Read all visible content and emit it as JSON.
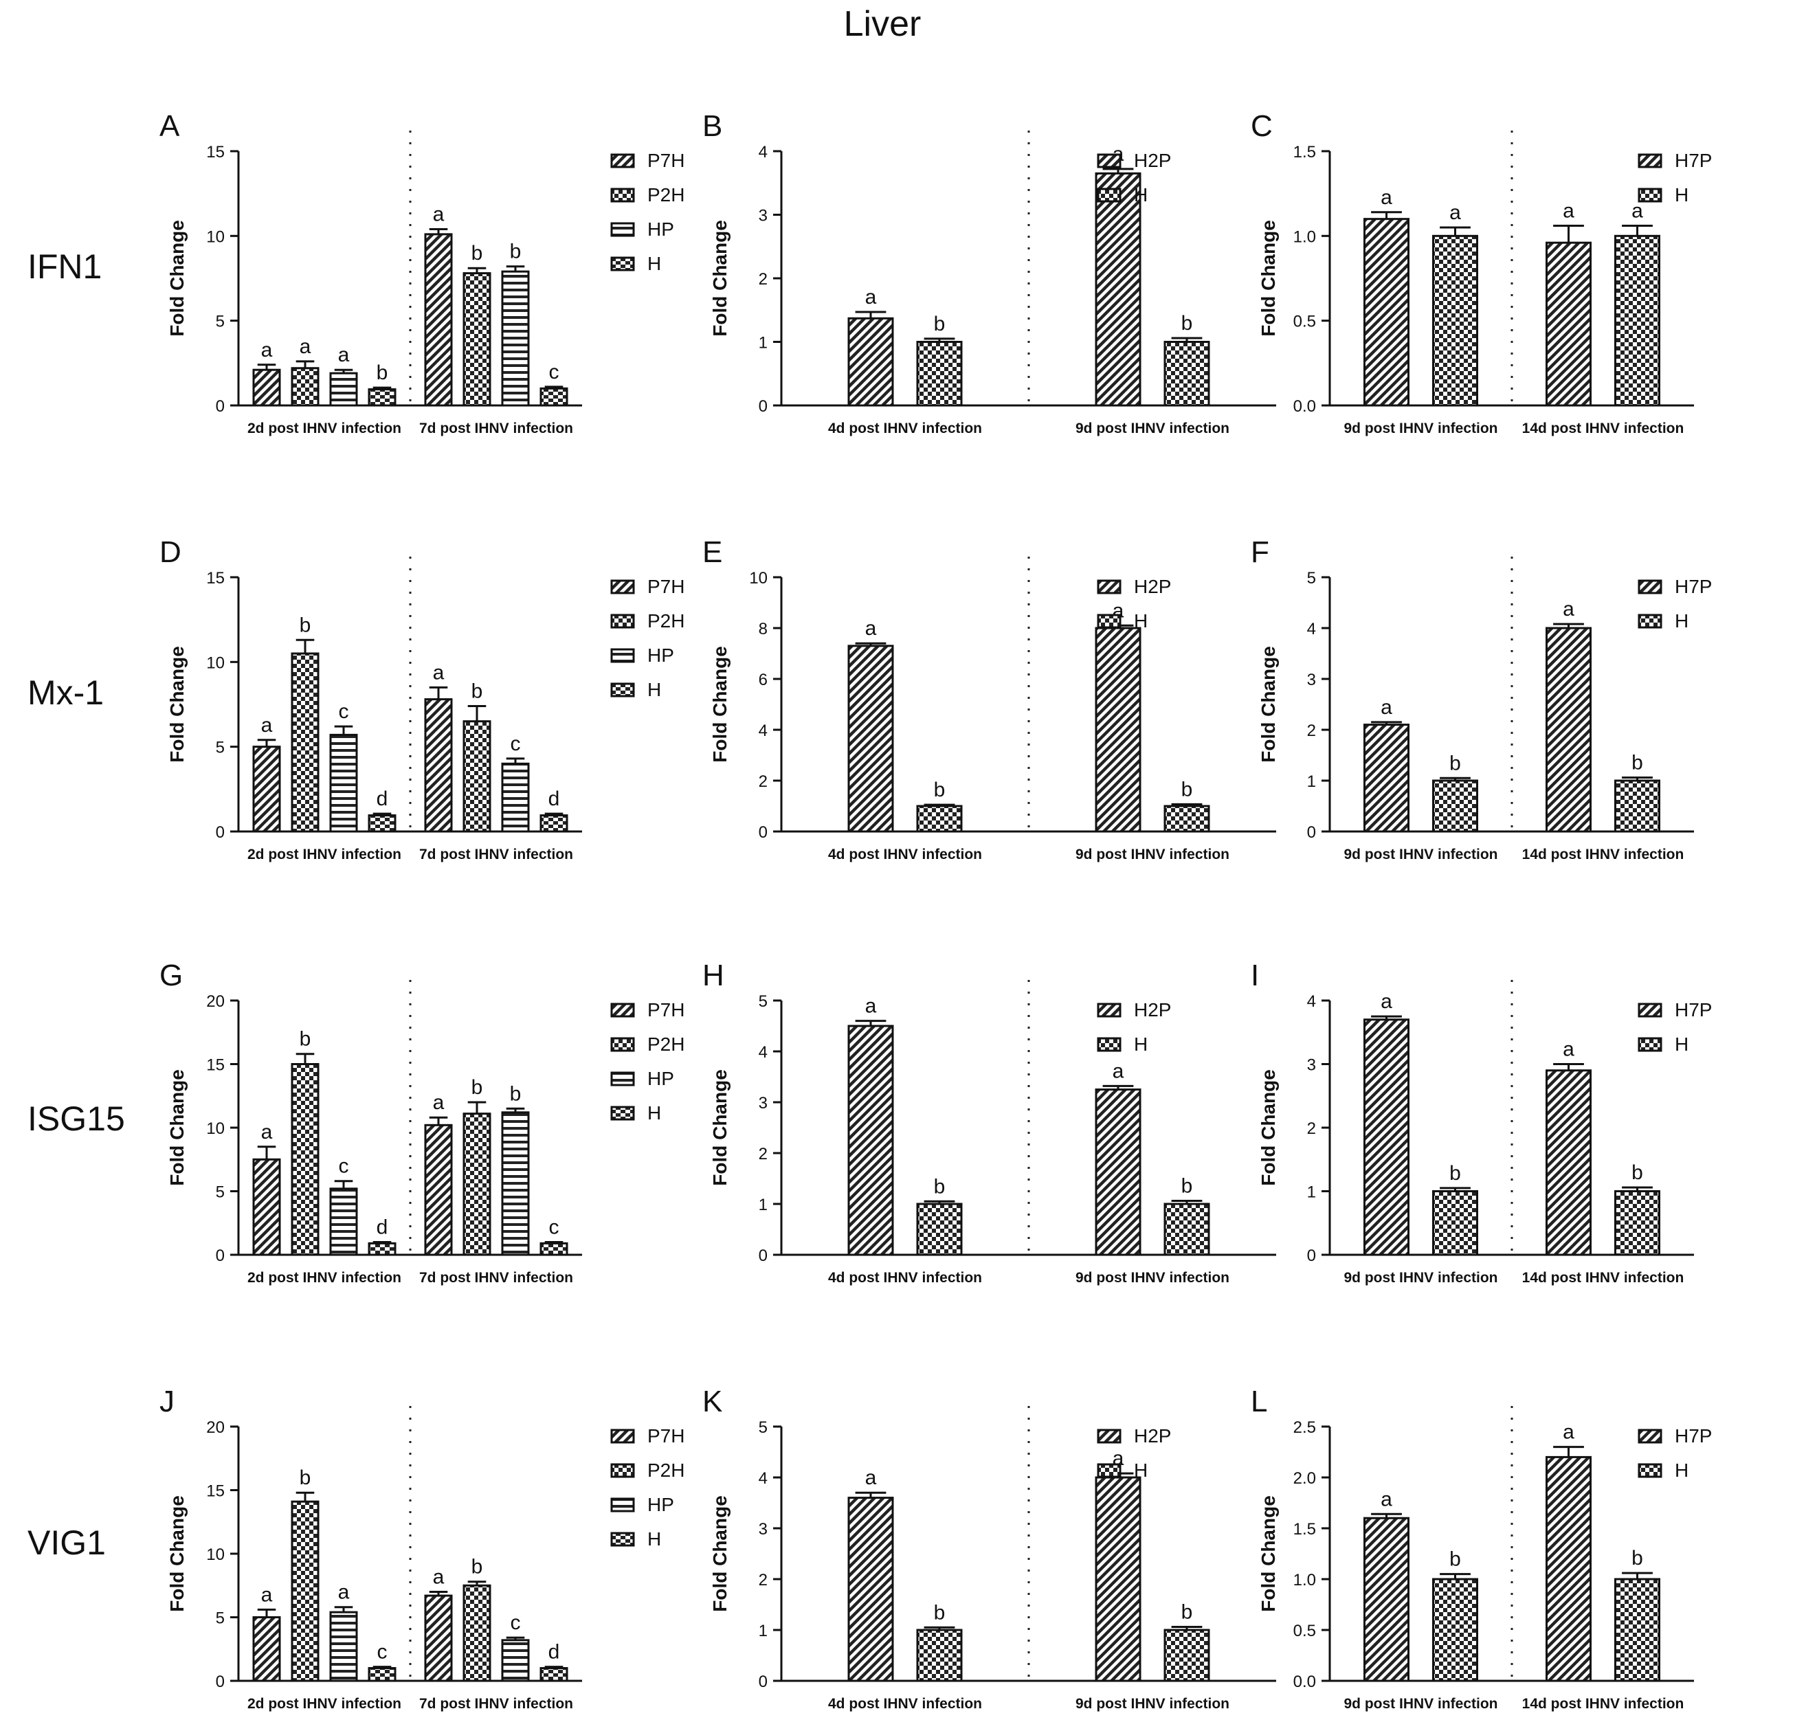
{
  "title": "Liver",
  "genes": [
    "IFN1",
    "Mx-1",
    "ISG15",
    "VIG1"
  ],
  "colors": {
    "ink": "#111111",
    "background": "#ffffff"
  },
  "chart_data": [
    {
      "id": "A",
      "panel_label": "A",
      "gene": "IFN1",
      "type": "bar",
      "ylabel": "Fold Change",
      "ylim": [
        0,
        15
      ],
      "yticks": [
        "0",
        "5",
        "10",
        "15"
      ],
      "legend": [
        "P7H",
        "P2H",
        "HP",
        "H"
      ],
      "patterns": [
        "diag",
        "check",
        "hstripe",
        "checkwide"
      ],
      "groups": [
        {
          "label": "2d post IHNV infection",
          "values": [
            2.1,
            2.2,
            1.9,
            0.95
          ],
          "errors": [
            0.3,
            0.4,
            0.2,
            0.1
          ],
          "letters": [
            "a",
            "a",
            "a",
            "b"
          ]
        },
        {
          "label": "7d post IHNV infection",
          "values": [
            10.1,
            7.8,
            7.9,
            1.0
          ],
          "errors": [
            0.3,
            0.3,
            0.3,
            0.1
          ],
          "letters": [
            "a",
            "b",
            "b",
            "c"
          ]
        }
      ]
    },
    {
      "id": "B",
      "panel_label": "B",
      "gene": "IFN1",
      "type": "bar",
      "ylabel": "Fold Change",
      "ylim": [
        0,
        4
      ],
      "yticks": [
        "0",
        "1",
        "2",
        "3",
        "4"
      ],
      "legend": [
        "H2P",
        "H"
      ],
      "patterns": [
        "diag",
        "check"
      ],
      "groups": [
        {
          "label": "4d post IHNV infection",
          "values": [
            1.37,
            1.0
          ],
          "errors": [
            0.1,
            0.05
          ],
          "letters": [
            "a",
            "b"
          ]
        },
        {
          "label": "9d post IHNV infection",
          "values": [
            3.65,
            1.0
          ],
          "errors": [
            0.07,
            0.06
          ],
          "letters": [
            "a",
            "b"
          ]
        }
      ]
    },
    {
      "id": "C",
      "panel_label": "C",
      "gene": "IFN1",
      "type": "bar",
      "ylabel": "Fold Change",
      "ylim": [
        0,
        1.5
      ],
      "yticks": [
        "0.0",
        "0.5",
        "1.0",
        "1.5"
      ],
      "legend": [
        "H7P",
        "H"
      ],
      "patterns": [
        "diag",
        "check"
      ],
      "groups": [
        {
          "label": "9d post IHNV infection",
          "values": [
            1.1,
            1.0
          ],
          "errors": [
            0.04,
            0.05
          ],
          "letters": [
            "a",
            "a"
          ]
        },
        {
          "label": "14d post IHNV infection",
          "values": [
            0.96,
            1.0
          ],
          "errors": [
            0.1,
            0.06
          ],
          "letters": [
            "a",
            "a"
          ]
        }
      ]
    },
    {
      "id": "D",
      "panel_label": "D",
      "gene": "Mx-1",
      "type": "bar",
      "ylabel": "Fold Change",
      "ylim": [
        0,
        15
      ],
      "yticks": [
        "0",
        "5",
        "10",
        "15"
      ],
      "legend": [
        "P7H",
        "P2H",
        "HP",
        "H"
      ],
      "patterns": [
        "diag",
        "check",
        "hstripe",
        "checkwide"
      ],
      "groups": [
        {
          "label": "2d post IHNV infection",
          "values": [
            5.0,
            10.5,
            5.7,
            0.95
          ],
          "errors": [
            0.4,
            0.8,
            0.5,
            0.1
          ],
          "letters": [
            "a",
            "b",
            "c",
            "d"
          ]
        },
        {
          "label": "7d post IHNV infection",
          "values": [
            7.8,
            6.5,
            4.0,
            0.95
          ],
          "errors": [
            0.7,
            0.9,
            0.3,
            0.1
          ],
          "letters": [
            "a",
            "b",
            "c",
            "d"
          ]
        }
      ]
    },
    {
      "id": "E",
      "panel_label": "E",
      "gene": "Mx-1",
      "type": "bar",
      "ylabel": "Fold Change",
      "ylim": [
        0,
        10
      ],
      "yticks": [
        "0",
        "2",
        "4",
        "6",
        "8",
        "10"
      ],
      "legend": [
        "H2P",
        "H"
      ],
      "patterns": [
        "diag",
        "check"
      ],
      "groups": [
        {
          "label": "4d post IHNV infection",
          "values": [
            7.3,
            1.0
          ],
          "errors": [
            0.1,
            0.05
          ],
          "letters": [
            "a",
            "b"
          ]
        },
        {
          "label": "9d post IHNV infection",
          "values": [
            8.0,
            1.0
          ],
          "errors": [
            0.1,
            0.07
          ],
          "letters": [
            "a",
            "b"
          ]
        }
      ]
    },
    {
      "id": "F",
      "panel_label": "F",
      "gene": "Mx-1",
      "type": "bar",
      "ylabel": "Fold Change",
      "ylim": [
        0,
        5
      ],
      "yticks": [
        "0",
        "1",
        "2",
        "3",
        "4",
        "5"
      ],
      "legend": [
        "H7P",
        "H"
      ],
      "patterns": [
        "diag",
        "check"
      ],
      "groups": [
        {
          "label": "9d post IHNV infection",
          "values": [
            2.1,
            1.0
          ],
          "errors": [
            0.05,
            0.05
          ],
          "letters": [
            "a",
            "b"
          ]
        },
        {
          "label": "14d post IHNV infection",
          "values": [
            4.0,
            1.0
          ],
          "errors": [
            0.08,
            0.06
          ],
          "letters": [
            "a",
            "b"
          ]
        }
      ]
    },
    {
      "id": "G",
      "panel_label": "G",
      "gene": "ISG15",
      "type": "bar",
      "ylabel": "Fold Change",
      "ylim": [
        0,
        20
      ],
      "yticks": [
        "0",
        "5",
        "10",
        "15",
        "20"
      ],
      "legend": [
        "P7H",
        "P2H",
        "HP",
        "H"
      ],
      "patterns": [
        "diag",
        "check",
        "hstripe",
        "checkwide"
      ],
      "groups": [
        {
          "label": "2d post IHNV infection",
          "values": [
            7.5,
            15.0,
            5.2,
            0.9
          ],
          "errors": [
            1.0,
            0.8,
            0.6,
            0.1
          ],
          "letters": [
            "a",
            "b",
            "c",
            "d"
          ]
        },
        {
          "label": "7d post IHNV infection",
          "values": [
            10.2,
            11.1,
            11.2,
            0.9
          ],
          "errors": [
            0.6,
            0.9,
            0.3,
            0.1
          ],
          "letters": [
            "a",
            "b",
            "b",
            "c"
          ]
        }
      ]
    },
    {
      "id": "H",
      "panel_label": "H",
      "gene": "ISG15",
      "type": "bar",
      "ylabel": "Fold Change",
      "ylim": [
        0,
        5
      ],
      "yticks": [
        "0",
        "1",
        "2",
        "3",
        "4",
        "5"
      ],
      "legend": [
        "H2P",
        "H"
      ],
      "patterns": [
        "diag",
        "check"
      ],
      "groups": [
        {
          "label": "4d post IHNV infection",
          "values": [
            4.5,
            1.0
          ],
          "errors": [
            0.1,
            0.05
          ],
          "letters": [
            "a",
            "b"
          ]
        },
        {
          "label": "9d post IHNV infection",
          "values": [
            3.25,
            1.0
          ],
          "errors": [
            0.07,
            0.06
          ],
          "letters": [
            "a",
            "b"
          ]
        }
      ]
    },
    {
      "id": "I",
      "panel_label": "I",
      "gene": "ISG15",
      "type": "bar",
      "ylabel": "Fold Change",
      "ylim": [
        0,
        4
      ],
      "yticks": [
        "0",
        "1",
        "2",
        "3",
        "4"
      ],
      "legend": [
        "H7P",
        "H"
      ],
      "patterns": [
        "diag",
        "check"
      ],
      "groups": [
        {
          "label": "9d post IHNV infection",
          "values": [
            3.7,
            1.0
          ],
          "errors": [
            0.05,
            0.05
          ],
          "letters": [
            "a",
            "b"
          ]
        },
        {
          "label": "14d post IHNV infection",
          "values": [
            2.9,
            1.0
          ],
          "errors": [
            0.1,
            0.06
          ],
          "letters": [
            "a",
            "b"
          ]
        }
      ]
    },
    {
      "id": "J",
      "panel_label": "J",
      "gene": "VIG1",
      "type": "bar",
      "ylabel": "Fold Change",
      "ylim": [
        0,
        20
      ],
      "yticks": [
        "0",
        "5",
        "10",
        "15",
        "20"
      ],
      "legend": [
        "P7H",
        "P2H",
        "HP",
        "H"
      ],
      "patterns": [
        "diag",
        "check",
        "hstripe",
        "checkwide"
      ],
      "groups": [
        {
          "label": "2d post IHNV infection",
          "values": [
            5.0,
            14.1,
            5.4,
            1.0
          ],
          "errors": [
            0.6,
            0.7,
            0.4,
            0.1
          ],
          "letters": [
            "a",
            "b",
            "a",
            "c"
          ]
        },
        {
          "label": "7d post IHNV infection",
          "values": [
            6.7,
            7.5,
            3.2,
            1.0
          ],
          "errors": [
            0.3,
            0.3,
            0.2,
            0.1
          ],
          "letters": [
            "a",
            "b",
            "c",
            "d"
          ]
        }
      ]
    },
    {
      "id": "K",
      "panel_label": "K",
      "gene": "VIG1",
      "type": "bar",
      "ylabel": "Fold Change",
      "ylim": [
        0,
        5
      ],
      "yticks": [
        "0",
        "1",
        "2",
        "3",
        "4",
        "5"
      ],
      "legend": [
        "H2P",
        "H"
      ],
      "patterns": [
        "diag",
        "check"
      ],
      "groups": [
        {
          "label": "4d post IHNV infection",
          "values": [
            3.6,
            1.0
          ],
          "errors": [
            0.1,
            0.05
          ],
          "letters": [
            "a",
            "b"
          ]
        },
        {
          "label": "9d post IHNV infection",
          "values": [
            4.0,
            1.0
          ],
          "errors": [
            0.08,
            0.06
          ],
          "letters": [
            "a",
            "b"
          ]
        }
      ]
    },
    {
      "id": "L",
      "panel_label": "L",
      "gene": "VIG1",
      "type": "bar",
      "ylabel": "Fold Change",
      "ylim": [
        0,
        2.5
      ],
      "yticks": [
        "0.0",
        "0.5",
        "1.0",
        "1.5",
        "2.0",
        "2.5"
      ],
      "legend": [
        "H7P",
        "H"
      ],
      "patterns": [
        "diag",
        "check"
      ],
      "groups": [
        {
          "label": "9d post IHNV infection",
          "values": [
            1.6,
            1.0
          ],
          "errors": [
            0.04,
            0.05
          ],
          "letters": [
            "a",
            "b"
          ]
        },
        {
          "label": "14d post IHNV infection",
          "values": [
            2.2,
            1.0
          ],
          "errors": [
            0.1,
            0.06
          ],
          "letters": [
            "a",
            "b"
          ]
        }
      ]
    }
  ]
}
